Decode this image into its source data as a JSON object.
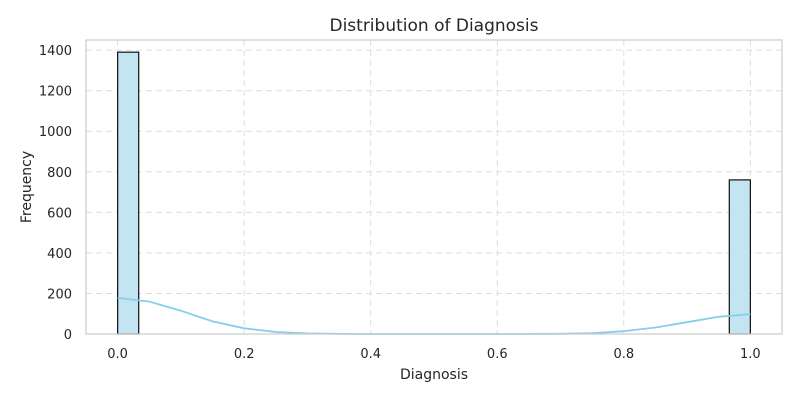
{
  "chart_data": {
    "type": "bar",
    "title": "Distribution of Diagnosis",
    "xlabel": "Diagnosis",
    "ylabel": "Frequency",
    "xlim": [
      -0.05,
      1.05
    ],
    "ylim": [
      0,
      1450
    ],
    "xticks": [
      "0.0",
      "0.2",
      "0.4",
      "0.6",
      "0.8",
      "1.0"
    ],
    "yticks": [
      "0",
      "200",
      "400",
      "600",
      "800",
      "1000",
      "1200",
      "1400"
    ],
    "grid": true,
    "bins": [
      {
        "x0": 0.0,
        "x1": 0.0333,
        "value": 1390
      },
      {
        "x0": 0.9667,
        "x1": 1.0,
        "value": 760
      }
    ],
    "kde": {
      "x": [
        0.0,
        0.05,
        0.1,
        0.15,
        0.2,
        0.25,
        0.3,
        0.35,
        0.4,
        0.5,
        0.6,
        0.7,
        0.75,
        0.8,
        0.85,
        0.9,
        0.95,
        1.0
      ],
      "y": [
        178,
        160,
        115,
        62,
        28,
        10,
        3,
        0.5,
        0,
        0,
        0,
        1,
        4,
        14,
        32,
        58,
        85,
        98
      ]
    },
    "colors": {
      "bar_fill": "#c3e4f1",
      "bar_edge": "#111111",
      "kde_line": "#87ceeb",
      "grid": "#dddddd",
      "frame": "#cccccc"
    }
  }
}
